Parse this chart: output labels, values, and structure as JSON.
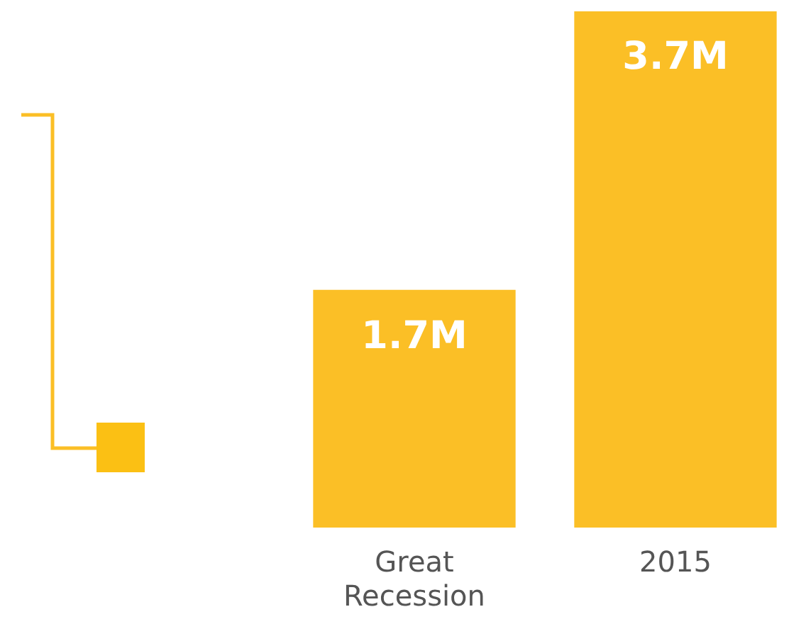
{
  "chart_data": {
    "type": "bar",
    "categories": [
      "Great Recession",
      "2015"
    ],
    "values": [
      1.7,
      3.7
    ],
    "color": "#fbbf26",
    "value_labels": [
      "1.7M",
      "3.7M"
    ],
    "grid": false,
    "legend": false,
    "tick_labels": "x"
  }
}
